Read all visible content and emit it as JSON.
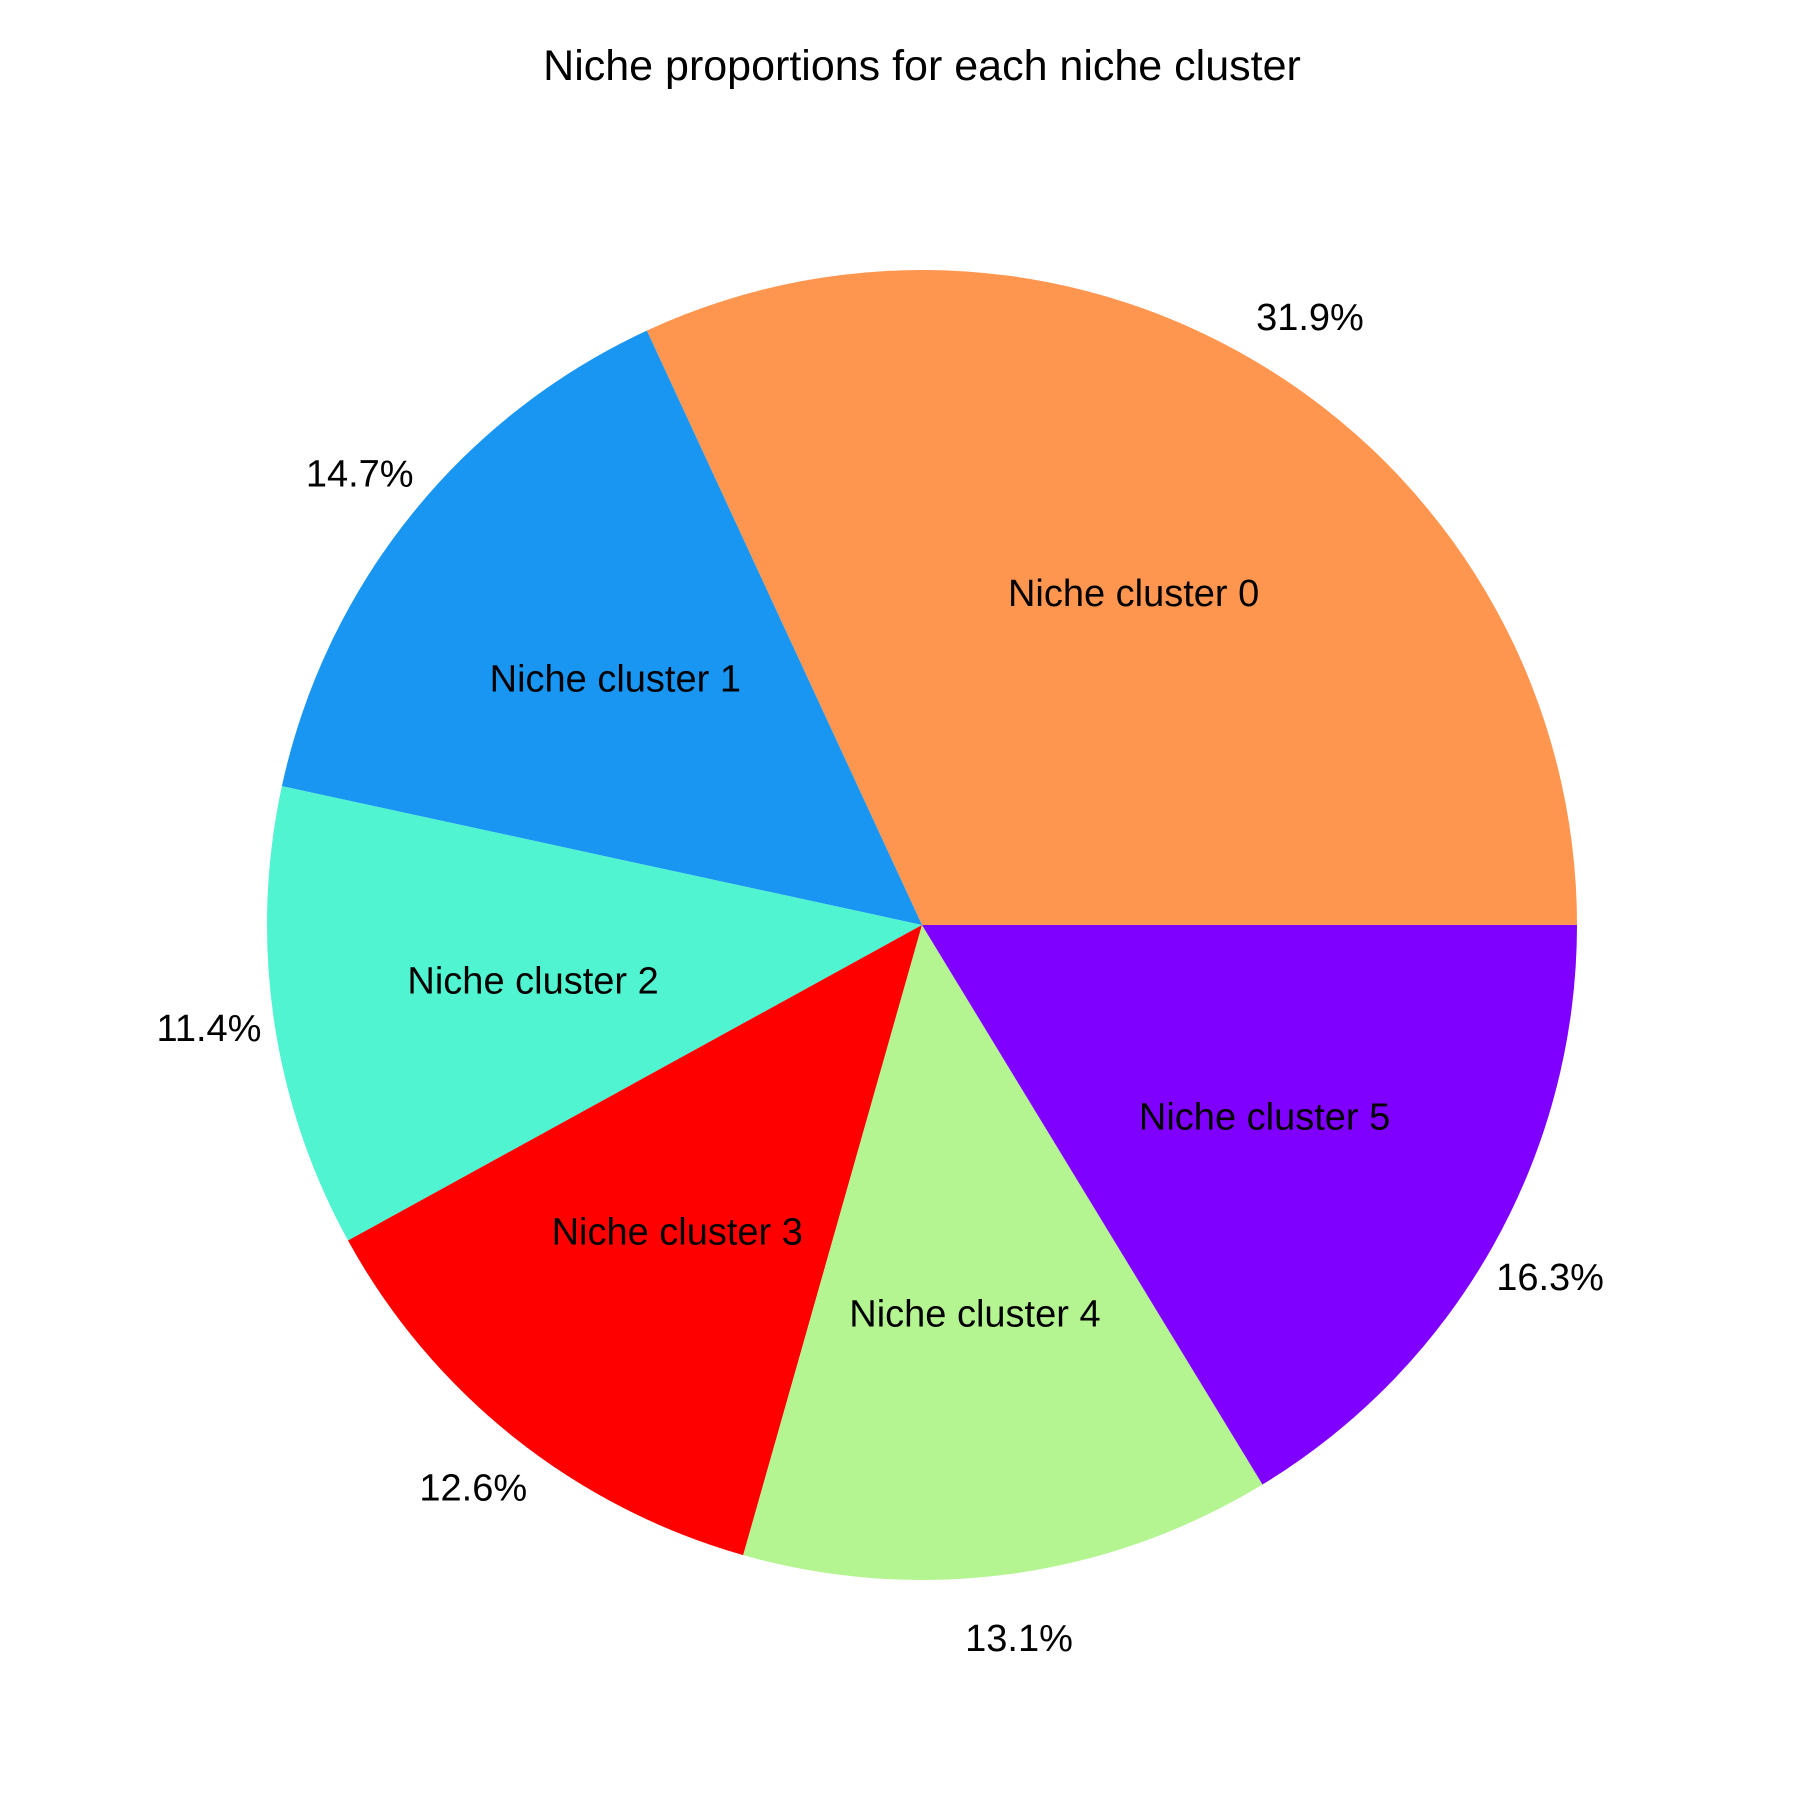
{
  "chart_data": {
    "type": "pie",
    "title": "Niche proportions for each niche cluster",
    "slices": [
      {
        "label": "Niche cluster 0",
        "value": 31.9,
        "display": "31.9%",
        "color": "#ff9650"
      },
      {
        "label": "Niche cluster 1",
        "value": 14.7,
        "display": "14.7%",
        "color": "#1995f2"
      },
      {
        "label": "Niche cluster 2",
        "value": 11.4,
        "display": "11.4%",
        "color": "#50f4d0"
      },
      {
        "label": "Niche cluster 3",
        "value": 12.6,
        "display": "12.6%",
        "color": "#ff0000"
      },
      {
        "label": "Niche cluster 4",
        "value": 13.1,
        "display": "13.1%",
        "color": "#b4f591"
      },
      {
        "label": "Niche cluster 5",
        "value": 16.3,
        "display": "16.3%",
        "color": "#8000ff"
      }
    ],
    "start_angle_deg": 0,
    "direction": "counterclockwise"
  }
}
